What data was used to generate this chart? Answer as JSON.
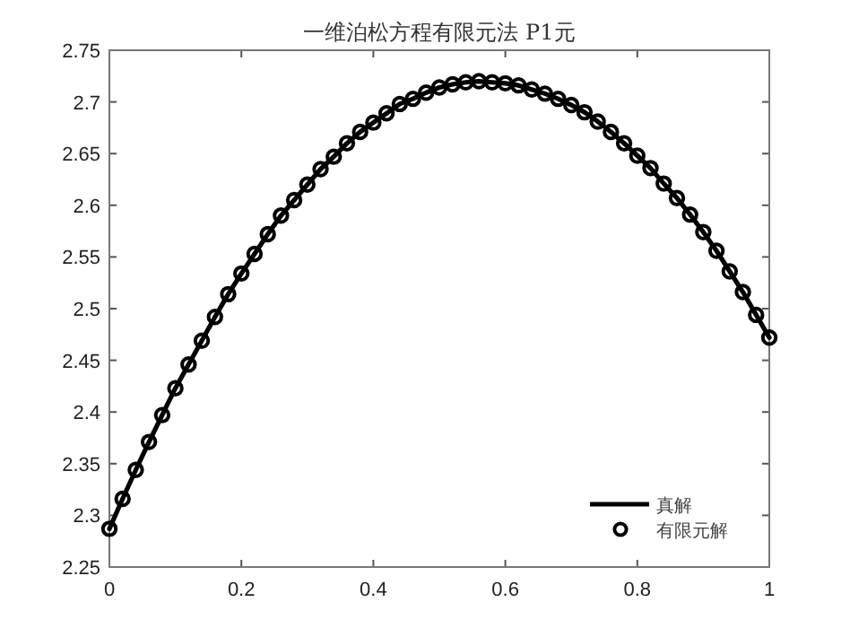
{
  "chart_data": {
    "type": "line",
    "title": "一维泊松方程有限元法 P1元",
    "x": [
      0,
      0.02,
      0.04,
      0.06,
      0.08,
      0.1,
      0.12,
      0.14,
      0.16,
      0.18,
      0.2,
      0.22,
      0.24,
      0.26,
      0.28,
      0.3,
      0.32,
      0.34,
      0.36,
      0.38,
      0.4,
      0.42,
      0.44,
      0.46,
      0.48,
      0.5,
      0.52,
      0.54,
      0.56,
      0.58,
      0.6,
      0.62,
      0.64,
      0.66,
      0.68,
      0.7,
      0.72,
      0.74,
      0.76,
      0.78,
      0.8,
      0.82,
      0.84,
      0.86,
      0.88,
      0.9,
      0.92,
      0.94,
      0.96,
      0.98,
      1
    ],
    "series": [
      {
        "name": "真解",
        "type": "line",
        "color": "#000000",
        "marker": "none",
        "line_style": "solid",
        "values": [
          2.287,
          2.316,
          2.344,
          2.371,
          2.397,
          2.423,
          2.446,
          2.469,
          2.492,
          2.514,
          2.534,
          2.553,
          2.572,
          2.59,
          2.605,
          2.62,
          2.635,
          2.647,
          2.66,
          2.671,
          2.68,
          2.689,
          2.698,
          2.703,
          2.709,
          2.714,
          2.717,
          2.719,
          2.72,
          2.719,
          2.718,
          2.716,
          2.712,
          2.708,
          2.703,
          2.697,
          2.69,
          2.681,
          2.671,
          2.66,
          2.648,
          2.636,
          2.621,
          2.607,
          2.591,
          2.574,
          2.556,
          2.536,
          2.516,
          2.494,
          2.472
        ]
      },
      {
        "name": "有限元解",
        "type": "scatter",
        "color": "#000000",
        "marker": "circle",
        "values": [
          2.287,
          2.316,
          2.344,
          2.371,
          2.397,
          2.423,
          2.446,
          2.469,
          2.492,
          2.514,
          2.534,
          2.553,
          2.572,
          2.59,
          2.605,
          2.62,
          2.635,
          2.647,
          2.66,
          2.671,
          2.68,
          2.689,
          2.698,
          2.703,
          2.709,
          2.714,
          2.717,
          2.719,
          2.72,
          2.719,
          2.718,
          2.716,
          2.712,
          2.708,
          2.703,
          2.697,
          2.69,
          2.681,
          2.671,
          2.66,
          2.648,
          2.636,
          2.621,
          2.607,
          2.591,
          2.574,
          2.556,
          2.536,
          2.516,
          2.494,
          2.472
        ]
      }
    ],
    "xlim": [
      0,
      1
    ],
    "xticks": [
      0,
      0.2,
      0.4,
      0.6,
      0.8,
      1
    ],
    "ylim": [
      2.25,
      2.75
    ],
    "yticks": [
      2.25,
      2.3,
      2.35,
      2.4,
      2.45,
      2.5,
      2.55,
      2.6,
      2.65,
      2.7,
      2.75
    ],
    "grid": false,
    "legend": "bottom right"
  }
}
